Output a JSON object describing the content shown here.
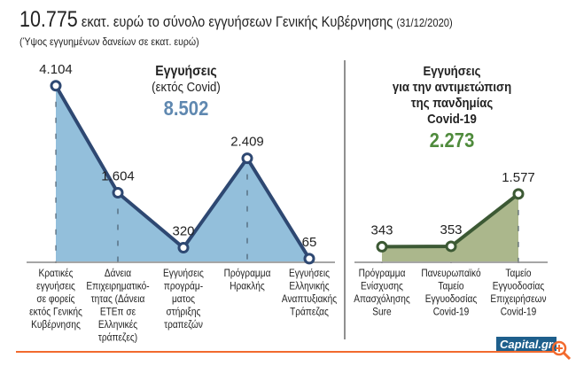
{
  "header": {
    "title_number": "10.775",
    "title_text": "εκατ. ευρώ το σύνολο εγγυήσεων Γενικής Κυβέρνησης",
    "title_date": "(31/12/2020)",
    "subtitle": "(Ύψος εγγυημένων δανείων σε εκατ. ευρώ)"
  },
  "chart_data": [
    {
      "type": "area",
      "title": "Εγγυήσεις",
      "subtitle": "(εκτός Covid)",
      "total": "8.502",
      "categories": [
        "Κρατικές εγγυήσεις σε φορείς εκτός Γενικής Κυβέρνησης",
        "Δάνεια Επιχειρηματικότητας (Δάνεια ΕΤΕπ σε Ελληνικές τράπεζες)",
        "Εγγυήσεις προγράμματος στήριξης τραπεζών",
        "Πρόγραμμα Ηρακλής",
        "Εγγυήσεις Ελληνικής Αναπτυξιακής Τράπεζας"
      ],
      "category_lines": [
        [
          "Κρατικές",
          "εγγυήσεις",
          "σε φορείς",
          "εκτός Γενικής",
          "Κυβέρνησης"
        ],
        [
          "Δάνεια",
          "Επιχειρηματικό-",
          "τητας (Δάνεια",
          "ΕΤΕπ σε",
          "Ελληνικές",
          "τράπεζες)"
        ],
        [
          "Εγγυήσεις",
          "προγράμ-",
          "ματος",
          "στήριξης",
          "τραπεζών"
        ],
        [
          "Πρόγραμμα",
          "Ηρακλής"
        ],
        [
          "Εγγυήσεις",
          "Ελληνικής",
          "Αναπτυξιακής",
          "Τράπεζας"
        ]
      ],
      "values": [
        4104,
        1604,
        320,
        2409,
        65
      ],
      "labels": [
        "4.104",
        "1.604",
        "320",
        "2.409",
        "65"
      ],
      "colors": {
        "fill": "#93bfdb",
        "line": "#2e4872",
        "total": "#5f88b0"
      }
    },
    {
      "type": "area",
      "title": "Εγγυήσεις για την αντιμετώπιση της πανδημίας Covid-19",
      "title_lines": [
        "Εγγυήσεις",
        "για την αντιμετώπιση",
        "της πανδημίας",
        "Covid-19"
      ],
      "total": "2.273",
      "categories": [
        "Πρόγραμμα Ενίσχυσης Απασχόλησης Sure",
        "Πανευρωπαϊκό Ταμείο Εγγυοδοσίας Covid-19",
        "Ταμείο Εγγυοδοσίας Επιχειρήσεων Covid-19"
      ],
      "category_lines": [
        [
          "Πρόγραμμα",
          "Ενίσχυσης",
          "Απασχόλησης",
          "Sure"
        ],
        [
          "Πανευρωπαϊκό",
          "Ταμείο",
          "Εγγυοδοσίας",
          "Covid-19"
        ],
        [
          "Ταμείο",
          "Εγγυοδοσίας",
          "Επιχειρήσεων",
          "Covid-19"
        ]
      ],
      "values": [
        343,
        353,
        1577
      ],
      "labels": [
        "343",
        "353",
        "1.577"
      ],
      "colors": {
        "fill": "#abb78c",
        "line": "#3c5934",
        "total": "#4f8b3c"
      }
    }
  ],
  "logo": {
    "text": "Capital.gr",
    "color": "#1e5f8c"
  },
  "accent_line_color": "#f26a2e"
}
